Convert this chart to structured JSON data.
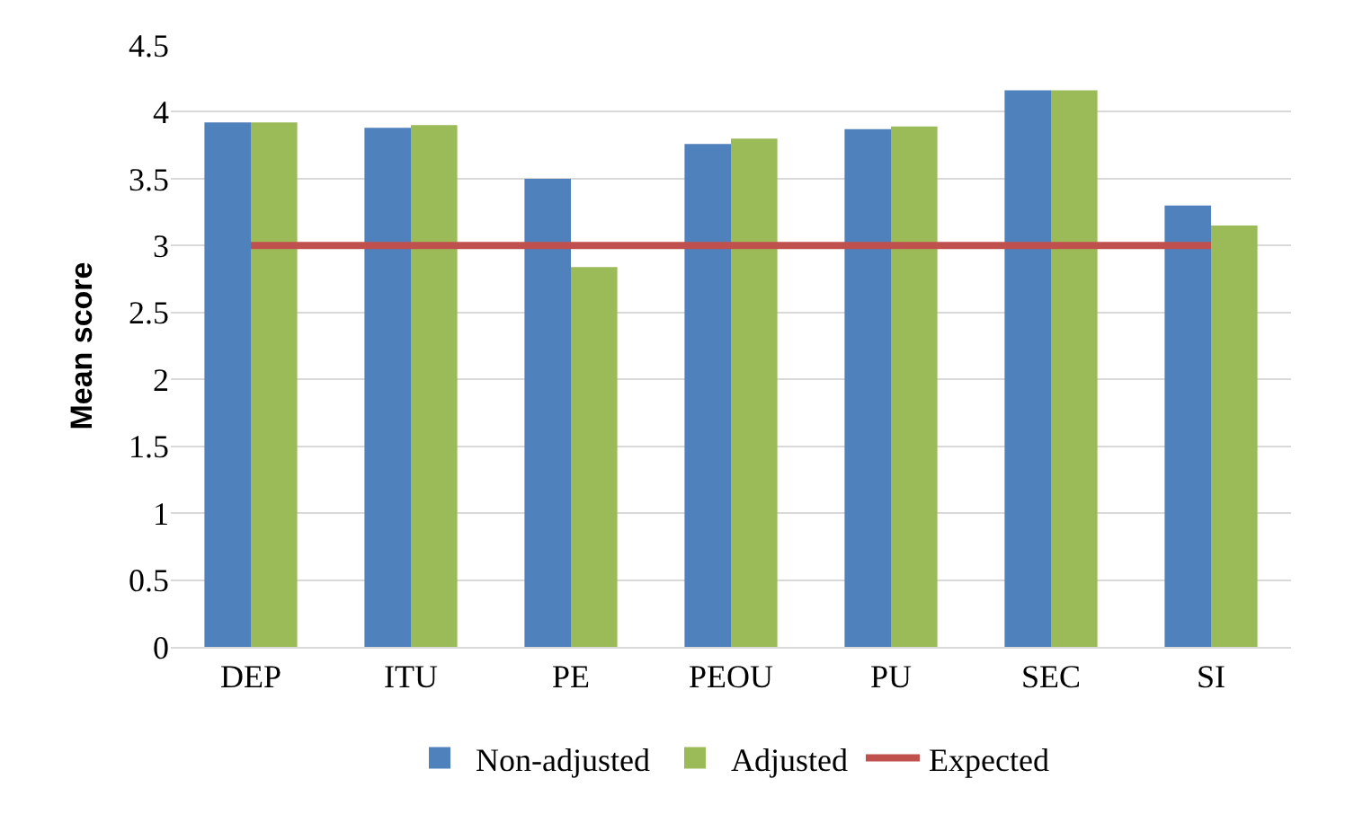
{
  "chart_data": {
    "type": "bar",
    "ylabel": "Mean score",
    "categories": [
      "DEP",
      "ITU",
      "PE",
      "PEOU",
      "PU",
      "SEC",
      "SI"
    ],
    "series": [
      {
        "name": "Non-adjusted",
        "color": "#4f81bd",
        "values": [
          3.92,
          3.88,
          3.5,
          3.76,
          3.87,
          4.16,
          3.3
        ]
      },
      {
        "name": "Adjusted",
        "color": "#9bbb59",
        "values": [
          3.92,
          3.9,
          2.84,
          3.8,
          3.89,
          4.16,
          3.15
        ]
      },
      {
        "name": "Expected",
        "color": "#c0504d",
        "type": "line",
        "values": [
          3,
          3,
          3,
          3,
          3,
          3,
          3
        ]
      }
    ],
    "ylim": [
      0,
      4.5
    ],
    "yticks": [
      0,
      0.5,
      1,
      1.5,
      2,
      2.5,
      3,
      3.5,
      4,
      4.5
    ],
    "grid": "y",
    "legend": "bottom"
  }
}
